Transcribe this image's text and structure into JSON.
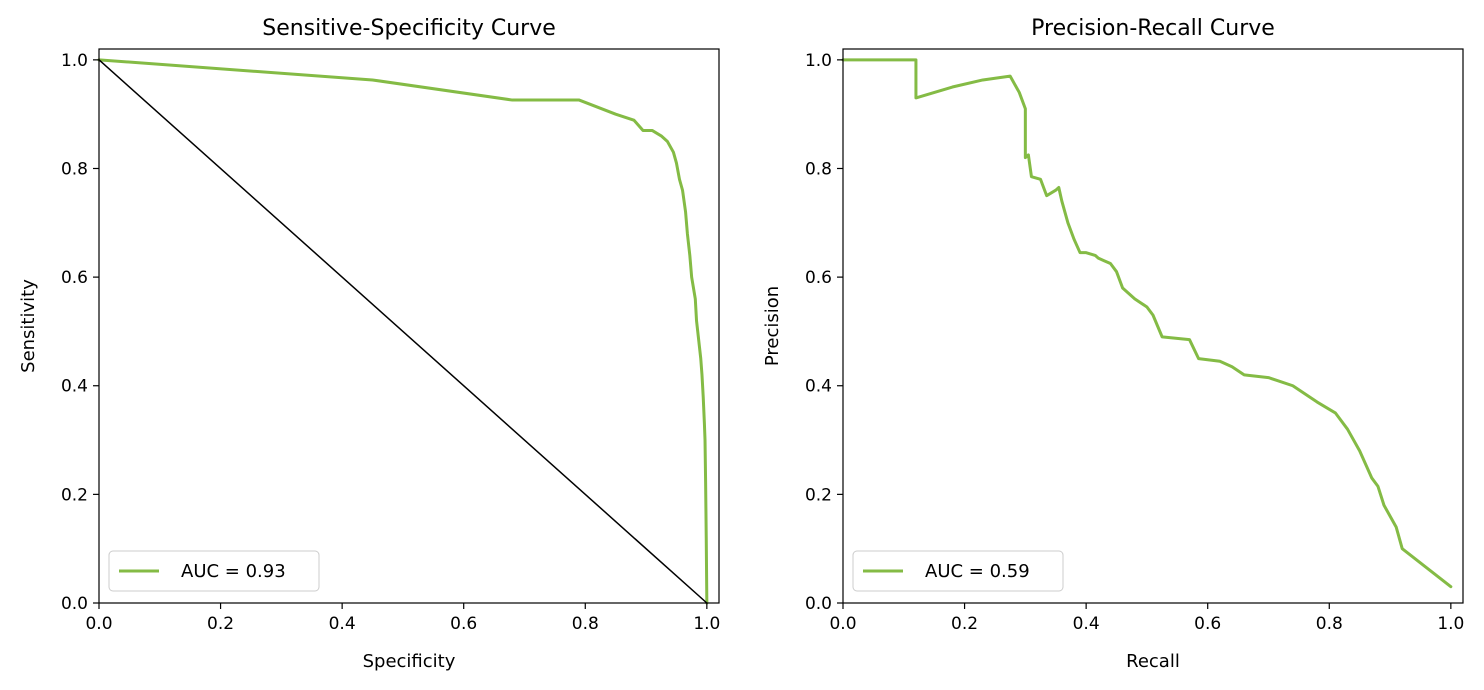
{
  "chart_data": [
    {
      "type": "line",
      "title": "Sensitive-Specificity Curve",
      "xlabel": "Specificity",
      "ylabel": "Sensitivity",
      "xlim": [
        0,
        1.02
      ],
      "ylim": [
        0,
        1.02
      ],
      "xticks": [
        "0.0",
        "0.2",
        "0.4",
        "0.6",
        "0.8",
        "1.0"
      ],
      "yticks": [
        "0.0",
        "0.2",
        "0.4",
        "0.6",
        "0.8",
        "1.0"
      ],
      "grid": false,
      "legend_position": "lower-left",
      "series": [
        {
          "name": "AUC = 0.93",
          "color": "#84bb45",
          "x": [
            0.0,
            0.45,
            0.68,
            0.79,
            0.85,
            0.88,
            0.895,
            0.91,
            0.925,
            0.935,
            0.945,
            0.95,
            0.955,
            0.96,
            0.965,
            0.968,
            0.972,
            0.975,
            0.978,
            0.981,
            0.983,
            0.985,
            0.987,
            0.99,
            0.992,
            0.994,
            0.996,
            0.997,
            0.998,
            0.999,
            1.0
          ],
          "y": [
            1.0,
            0.963,
            0.926,
            0.926,
            0.9,
            0.889,
            0.87,
            0.87,
            0.86,
            0.85,
            0.83,
            0.81,
            0.78,
            0.76,
            0.72,
            0.68,
            0.64,
            0.6,
            0.58,
            0.56,
            0.52,
            0.5,
            0.48,
            0.45,
            0.42,
            0.38,
            0.33,
            0.3,
            0.22,
            0.12,
            0.0
          ]
        },
        {
          "name": "",
          "color": "#000000",
          "x": [
            0,
            1
          ],
          "y": [
            1,
            0
          ]
        }
      ]
    },
    {
      "type": "line",
      "title": "Precision-Recall Curve",
      "xlabel": "Recall",
      "ylabel": "Precision",
      "xlim": [
        0,
        1.02
      ],
      "ylim": [
        0,
        1.02
      ],
      "xticks": [
        "0.0",
        "0.2",
        "0.4",
        "0.6",
        "0.8",
        "1.0"
      ],
      "yticks": [
        "0.0",
        "0.2",
        "0.4",
        "0.6",
        "0.8",
        "1.0"
      ],
      "grid": false,
      "legend_position": "lower-left",
      "series": [
        {
          "name": "AUC = 0.59",
          "color": "#84bb45",
          "x": [
            0.0,
            0.12,
            0.12,
            0.18,
            0.23,
            0.275,
            0.29,
            0.3,
            0.3,
            0.305,
            0.31,
            0.325,
            0.335,
            0.35,
            0.355,
            0.36,
            0.37,
            0.38,
            0.39,
            0.4,
            0.415,
            0.42,
            0.43,
            0.44,
            0.45,
            0.46,
            0.48,
            0.5,
            0.51,
            0.525,
            0.57,
            0.585,
            0.62,
            0.64,
            0.66,
            0.7,
            0.74,
            0.78,
            0.81,
            0.83,
            0.85,
            0.86,
            0.87,
            0.88,
            0.89,
            0.91,
            0.92,
            0.96,
            1.0
          ],
          "y": [
            1.0,
            1.0,
            0.93,
            0.95,
            0.963,
            0.97,
            0.94,
            0.91,
            0.82,
            0.825,
            0.785,
            0.78,
            0.75,
            0.76,
            0.765,
            0.74,
            0.7,
            0.67,
            0.645,
            0.645,
            0.64,
            0.635,
            0.63,
            0.625,
            0.61,
            0.58,
            0.56,
            0.545,
            0.53,
            0.49,
            0.485,
            0.45,
            0.445,
            0.435,
            0.42,
            0.415,
            0.4,
            0.37,
            0.35,
            0.32,
            0.28,
            0.255,
            0.23,
            0.215,
            0.18,
            0.14,
            0.1,
            0.065,
            0.03
          ]
        }
      ]
    }
  ]
}
